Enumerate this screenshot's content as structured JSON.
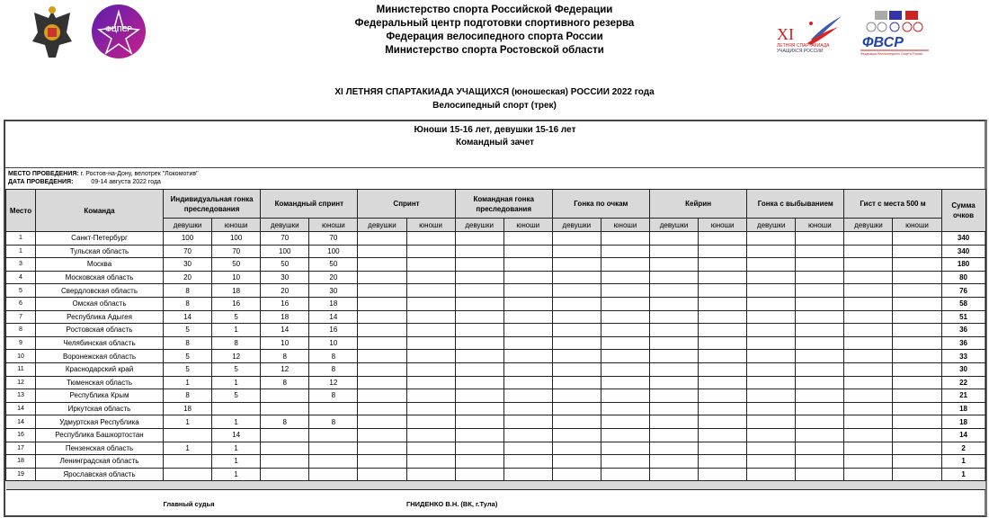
{
  "header": {
    "lines": [
      "Министерство спорта Российской Федерации",
      "Федеральный центр подготовки спортивного резерва",
      "Федерация велосипедного спорта России",
      "Министерство спорта Ростовской области"
    ]
  },
  "logos": {
    "left1": "Минспорт герб",
    "left2": "ФЦПСР",
    "right1": "XI ЛЕТНЯЯ СПАРТАКИАДА УЧАЩИХСЯ РОССИИ",
    "right2": "ФВСР"
  },
  "event": {
    "title": "XI ЛЕТНЯЯ СПАРТАКИАДА УЧАЩИХСЯ (юношеская) РОССИИ 2022 года",
    "sport": "Велосипедный спорт (трек)"
  },
  "group": {
    "line1": "Юноши 15-16 лет, девушки 15-16 лет",
    "line2": "Командный зачет"
  },
  "venue": {
    "label": "МЕСТО ПРОВЕДЕНИЯ:",
    "value": " г. Ростов-на-Дону, велотрек \"Локомотив\""
  },
  "date": {
    "label": "ДАТА ПРОВЕДЕНИЯ:",
    "value": "09-14 августа 2022 года"
  },
  "columns": {
    "place": "Место",
    "team": "Команда",
    "sum": "Сумма очков",
    "girls": "девушки",
    "boys": "юноши",
    "events": [
      "Индивидуальная гонка преследования",
      "Командный спринт",
      "Спринт",
      "Командная гонка преследования",
      "Гонка по очкам",
      "Кейрин",
      "Гонка с выбыванием",
      "Гист с места 500 м"
    ]
  },
  "rows": [
    {
      "place": "1",
      "team": "Санкт-Петербург",
      "v": [
        "100",
        "100",
        "70",
        "70"
      ],
      "sum": "340"
    },
    {
      "place": "1",
      "team": "Тульская область",
      "v": [
        "70",
        "70",
        "100",
        "100"
      ],
      "sum": "340"
    },
    {
      "place": "3",
      "team": "Москва",
      "v": [
        "30",
        "50",
        "50",
        "50"
      ],
      "sum": "180"
    },
    {
      "place": "4",
      "team": "Московская область",
      "v": [
        "20",
        "10",
        "30",
        "20"
      ],
      "sum": "80"
    },
    {
      "place": "5",
      "team": "Свердловская область",
      "v": [
        "8",
        "18",
        "20",
        "30"
      ],
      "sum": "76"
    },
    {
      "place": "6",
      "team": "Омская область",
      "v": [
        "8",
        "16",
        "16",
        "18"
      ],
      "sum": "58"
    },
    {
      "place": "7",
      "team": "Республика Адыгея",
      "v": [
        "14",
        "5",
        "18",
        "14"
      ],
      "sum": "51"
    },
    {
      "place": "8",
      "team": "Ростовская область",
      "v": [
        "5",
        "1",
        "14",
        "16"
      ],
      "sum": "36"
    },
    {
      "place": "9",
      "team": "Челябинская область",
      "v": [
        "8",
        "8",
        "10",
        "10"
      ],
      "sum": "36"
    },
    {
      "place": "10",
      "team": "Воронежская область",
      "v": [
        "5",
        "12",
        "8",
        "8"
      ],
      "sum": "33"
    },
    {
      "place": "11",
      "team": "Краснодарский край",
      "v": [
        "5",
        "5",
        "12",
        "8"
      ],
      "sum": "30"
    },
    {
      "place": "12",
      "team": "Тюменская область",
      "v": [
        "1",
        "1",
        "8",
        "12"
      ],
      "sum": "22"
    },
    {
      "place": "13",
      "team": "Республика Крым",
      "v": [
        "8",
        "5",
        "",
        "8"
      ],
      "sum": "21"
    },
    {
      "place": "14",
      "team": "Иркутская область",
      "v": [
        "18",
        "",
        "",
        ""
      ],
      "sum": "18"
    },
    {
      "place": "14",
      "team": "Удмуртская Республика",
      "v": [
        "1",
        "1",
        "8",
        "8"
      ],
      "sum": "18"
    },
    {
      "place": "16",
      "team": "Республика Башкортостан",
      "v": [
        "",
        "14",
        "",
        ""
      ],
      "sum": "14"
    },
    {
      "place": "17",
      "team": "Пензенская область",
      "v": [
        "1",
        "1",
        "",
        ""
      ],
      "sum": "2"
    },
    {
      "place": "18",
      "team": "Ленинградская область",
      "v": [
        "",
        "1",
        "",
        ""
      ],
      "sum": "1"
    },
    {
      "place": "19",
      "team": "Ярославская область",
      "v": [
        "",
        "1",
        "",
        ""
      ],
      "sum": "1"
    }
  ],
  "footer": {
    "judge_label": "Главный судья",
    "judge_name": "ГНИДЕНКО В.Н. (ВК, г.Тула)"
  }
}
